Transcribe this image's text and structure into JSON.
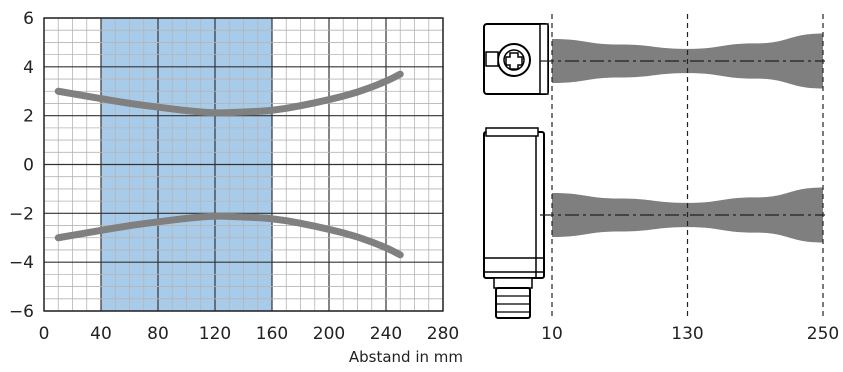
{
  "chart_data": [
    {
      "type": "line",
      "title": "",
      "xlabel": "Abstand in mm",
      "ylabel": "",
      "xlim": [
        0,
        280
      ],
      "ylim": [
        -6,
        6
      ],
      "x_ticks": [
        0,
        40,
        80,
        120,
        160,
        200,
        240,
        280
      ],
      "y_ticks": [
        6,
        4,
        2,
        0,
        -2,
        -4,
        -6
      ],
      "x_tick_labels": [
        "0",
        "40",
        "80",
        "120",
        "160",
        "200",
        "240",
        "280"
      ],
      "y_tick_labels": [
        "6",
        "4",
        "2",
        "0",
        "−2",
        "−4",
        "−6"
      ],
      "grid": true,
      "highlight_band": {
        "x": [
          40,
          160
        ],
        "color": "#a9cbea"
      },
      "line_color": "#808080",
      "series": [
        {
          "x": [
            10,
            40,
            60,
            80,
            100,
            120,
            140,
            160,
            180,
            200,
            220,
            240,
            250
          ],
          "values": [
            3.0,
            2.7,
            2.5,
            2.35,
            2.2,
            2.1,
            2.15,
            2.2,
            2.4,
            2.65,
            2.95,
            3.4,
            3.7
          ]
        },
        {
          "x": [
            10,
            40,
            60,
            80,
            100,
            120,
            140,
            160,
            180,
            200,
            220,
            240,
            250
          ],
          "values": [
            -3.0,
            -2.7,
            -2.5,
            -2.35,
            -2.2,
            -2.1,
            -2.15,
            -2.2,
            -2.4,
            -2.65,
            -2.95,
            -3.4,
            -3.7
          ]
        }
      ]
    },
    {
      "type": "area",
      "title": "",
      "xlabel": "",
      "x_ticks": [
        10,
        130,
        250
      ],
      "x_tick_labels": [
        "10",
        "130",
        "250"
      ],
      "band_color": "#7f7f7f",
      "series": [
        {
          "x": [
            10,
            70,
            130,
            190,
            250
          ],
          "half_width": [
            1.0,
            0.75,
            0.55,
            0.8,
            1.25
          ]
        },
        {
          "x": [
            10,
            70,
            130,
            190,
            250
          ],
          "half_width": [
            1.0,
            0.75,
            0.55,
            0.8,
            1.25
          ]
        }
      ]
    }
  ]
}
